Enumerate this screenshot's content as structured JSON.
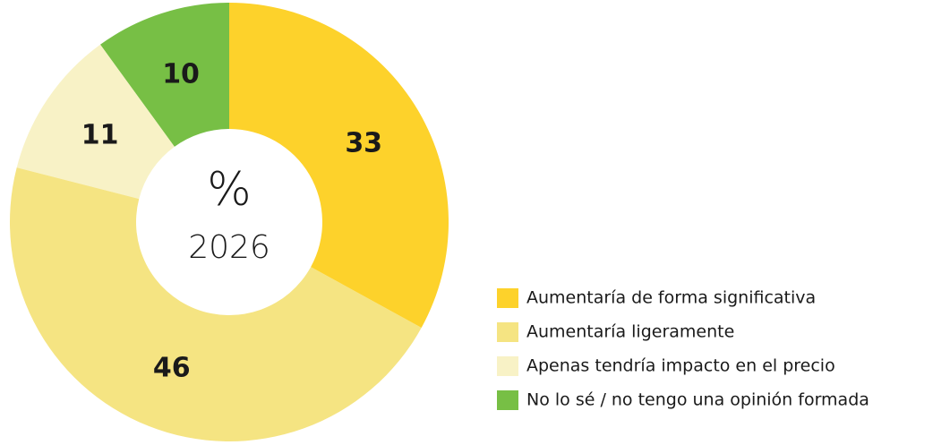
{
  "chart_data": {
    "type": "donut",
    "center_label": "%",
    "center_sublabel": "2026",
    "categories": [
      "Aumentaría de forma significativa",
      "Aumentaría ligeramente",
      "Apenas tendría impacto en el precio",
      "No lo sé / no tengo una opinión formada"
    ],
    "values": [
      33,
      46,
      11,
      10
    ],
    "colors": [
      "#fdd22b",
      "#f5e482",
      "#f8f2c6",
      "#77bf45"
    ]
  }
}
